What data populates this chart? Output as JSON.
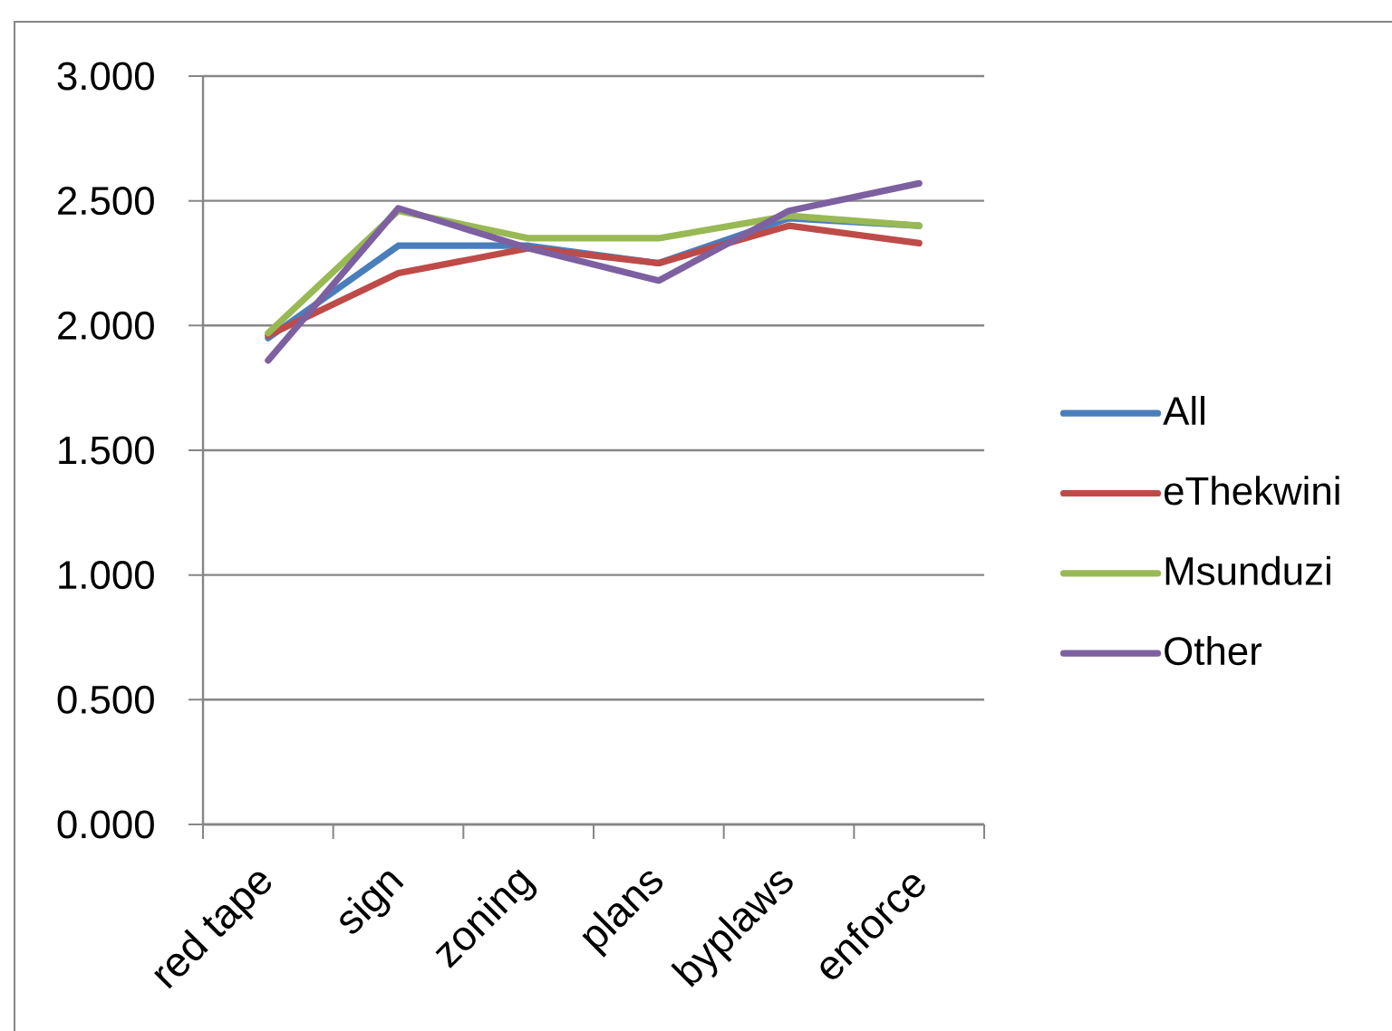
{
  "chart_data": {
    "type": "line",
    "categories": [
      "red tape",
      "sign",
      "zoning",
      "plans",
      "byplaws",
      "enforce"
    ],
    "series": [
      {
        "name": "All",
        "color": "#4a7ebb",
        "values": [
          1.95,
          2.32,
          2.32,
          2.25,
          2.43,
          2.4
        ]
      },
      {
        "name": "eThekwini",
        "color": "#be4b48",
        "values": [
          1.96,
          2.21,
          2.31,
          2.25,
          2.4,
          2.33
        ]
      },
      {
        "name": "Msunduzi",
        "color": "#98b954",
        "values": [
          1.97,
          2.46,
          2.35,
          2.35,
          2.44,
          2.4
        ]
      },
      {
        "name": "Other",
        "color": "#7d60a0",
        "values": [
          1.86,
          2.47,
          2.31,
          2.18,
          2.46,
          2.57
        ]
      }
    ],
    "ylim": [
      0,
      3
    ],
    "yticks": [
      {
        "value": 0,
        "label": "0.000"
      },
      {
        "value": 0.5,
        "label": "0.500"
      },
      {
        "value": 1,
        "label": "1.000"
      },
      {
        "value": 1.5,
        "label": "1.500"
      },
      {
        "value": 2,
        "label": "2.000"
      },
      {
        "value": 2.5,
        "label": "2.500"
      },
      {
        "value": 3,
        "label": "3.000"
      }
    ],
    "grid": "y",
    "legend": "right",
    "line_style": "solid"
  }
}
